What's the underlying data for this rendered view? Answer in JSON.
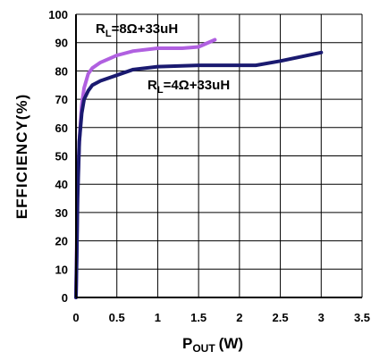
{
  "chart_data": {
    "type": "line",
    "ylabel": "EFFICIENCY(%)",
    "xlabel": {
      "main": "P",
      "sub": "OUT",
      "units": "(W)"
    },
    "xlim": [
      0,
      3.5
    ],
    "ylim": [
      0,
      100
    ],
    "x_ticks": [
      "0",
      "0.5",
      "1",
      "1.5",
      "2",
      "2.5",
      "3",
      "3.5"
    ],
    "y_ticks": [
      "0",
      "10",
      "20",
      "30",
      "40",
      "50",
      "60",
      "70",
      "80",
      "90",
      "100"
    ],
    "grid": true,
    "series": [
      {
        "name": "RL=8Ω+33uH",
        "label": {
          "main": "R",
          "sub": "L",
          "rest": "=8Ω+33uH"
        },
        "color": "#b060e0",
        "points": [
          [
            0.0,
            0
          ],
          [
            0.01,
            20
          ],
          [
            0.02,
            38
          ],
          [
            0.04,
            55
          ],
          [
            0.07,
            68
          ],
          [
            0.1,
            74
          ],
          [
            0.15,
            79
          ],
          [
            0.2,
            81
          ],
          [
            0.3,
            83
          ],
          [
            0.5,
            85.5
          ],
          [
            0.7,
            87
          ],
          [
            1.0,
            88
          ],
          [
            1.3,
            88
          ],
          [
            1.5,
            88.5
          ],
          [
            1.7,
            91
          ]
        ]
      },
      {
        "name": "RL=4Ω+33uH",
        "label": {
          "main": "R",
          "sub": "L",
          "rest": "=4Ω+33uH"
        },
        "color": "#1a1a70",
        "points": [
          [
            0.0,
            0
          ],
          [
            0.01,
            15
          ],
          [
            0.02,
            35
          ],
          [
            0.04,
            55
          ],
          [
            0.07,
            65
          ],
          [
            0.1,
            70
          ],
          [
            0.15,
            73
          ],
          [
            0.2,
            75
          ],
          [
            0.3,
            76.5
          ],
          [
            0.5,
            78.5
          ],
          [
            0.7,
            80.5
          ],
          [
            1.0,
            81.5
          ],
          [
            1.5,
            82
          ],
          [
            2.0,
            82
          ],
          [
            2.2,
            82
          ],
          [
            2.5,
            83.5
          ],
          [
            3.0,
            86.5
          ]
        ]
      }
    ]
  }
}
